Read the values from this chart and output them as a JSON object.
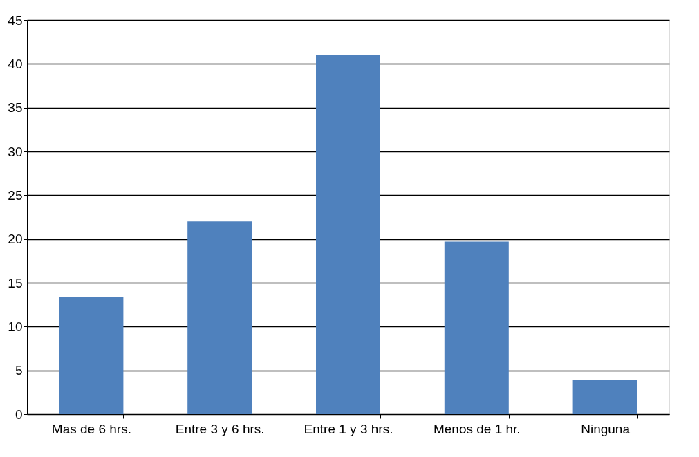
{
  "chart_data": {
    "type": "bar",
    "categories": [
      "Mas de 6 hrs.",
      "Entre 3 y 6 hrs.",
      "Entre 1 y 3 hrs.",
      "Menos de 1 hr.",
      "Ninguna"
    ],
    "values": [
      13.4,
      22.0,
      41.0,
      19.7,
      3.9
    ],
    "color": "#4f81bd",
    "ylim": [
      0,
      45
    ],
    "yticks": [
      0,
      5,
      10,
      15,
      20,
      25,
      30,
      35,
      40,
      45
    ],
    "grid": "y"
  }
}
